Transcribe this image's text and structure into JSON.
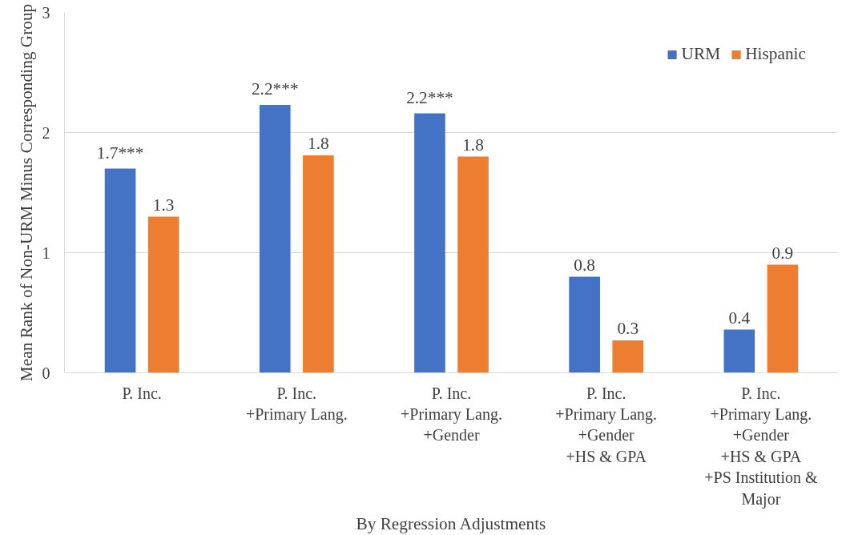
{
  "chart_data": {
    "type": "bar",
    "categories": [
      "P. Inc.",
      "P. Inc.\n+Primary Lang.",
      "P. Inc.\n+Primary Lang.\n+Gender",
      "P. Inc.\n+Primary Lang.\n+Gender\n+HS & GPA",
      "P. Inc.\n+Primary Lang.\n+Gender\n+HS & GPA\n+PS Institution &\nMajor"
    ],
    "series": [
      {
        "name": "URM",
        "color": "#4472c4",
        "values": [
          1.7,
          2.23,
          2.16,
          0.8,
          0.36
        ],
        "value_labels": [
          "1.7***",
          "2.2***",
          "2.2***",
          "0.8",
          "0.4"
        ]
      },
      {
        "name": "Hispanic",
        "color": "#ed7d31",
        "values": [
          1.3,
          1.81,
          1.8,
          0.27,
          0.9
        ],
        "value_labels": [
          "1.3",
          "1.8",
          "1.8",
          "0.3",
          "0.9"
        ]
      }
    ],
    "xlabel": "By Regression Adjustments",
    "ylabel": "Mean Rank of Non-URM Minus Corresponding Group",
    "ylim": [
      0,
      3
    ],
    "yticks": [
      0,
      1,
      2,
      3
    ],
    "grid": "y",
    "legend": "top right"
  }
}
